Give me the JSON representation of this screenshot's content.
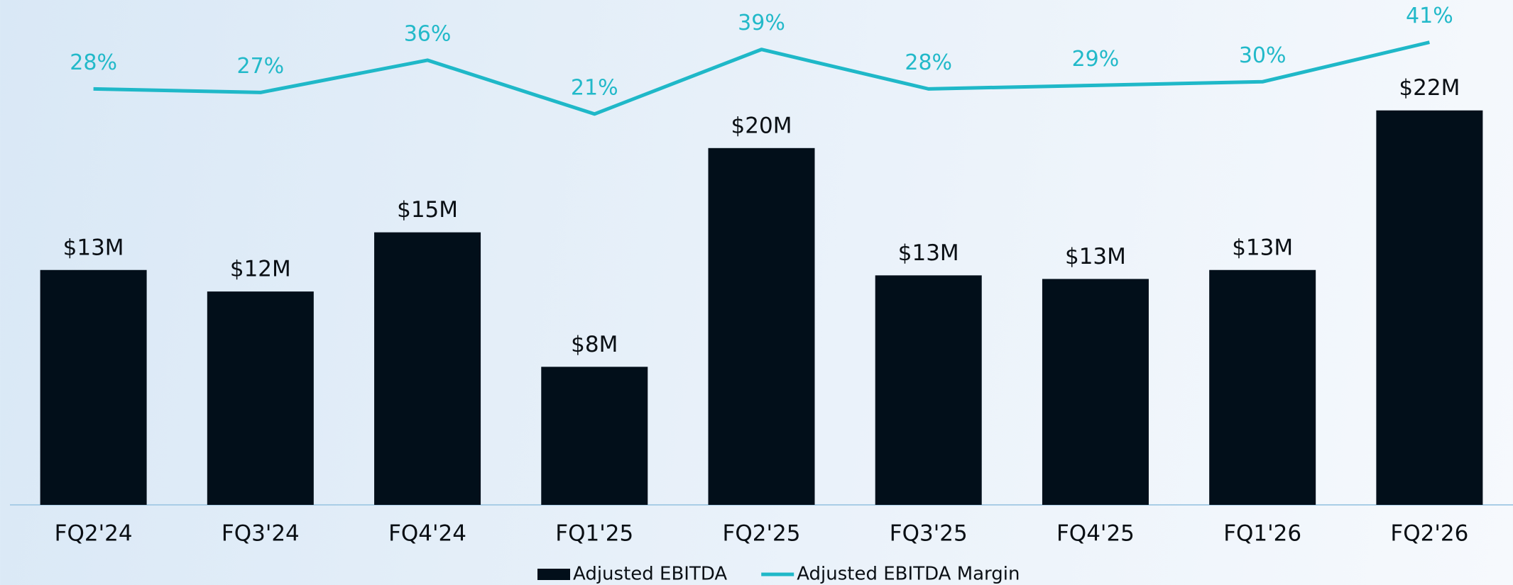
{
  "chart_data": {
    "type": "bar_line",
    "categories": [
      "FQ2'24",
      "FQ3'24",
      "FQ4'24",
      "FQ1'25",
      "FQ2'25",
      "FQ3'25",
      "FQ4'25",
      "FQ1'26",
      "FQ2'26"
    ],
    "series": [
      {
        "name": "Adjusted EBITDA",
        "type": "bar",
        "color": "#020f1a",
        "values": [
          13.1,
          11.9,
          15.2,
          7.7,
          19.9,
          12.8,
          12.6,
          13.1,
          22.0
        ],
        "value_labels": [
          "$13M",
          "$12M",
          "$15M",
          "$8M",
          "$20M",
          "$13M",
          "$13M",
          "$13M",
          "$22M"
        ]
      },
      {
        "name": "Adjusted EBITDA Margin",
        "type": "line",
        "axis": "y2",
        "color": "#1fb8c8",
        "values": [
          28,
          27,
          36,
          21,
          39,
          28,
          29,
          30,
          41
        ],
        "value_labels": [
          "28%",
          "27%",
          "36%",
          "21%",
          "39%",
          "28%",
          "29%",
          "30%",
          "41%"
        ]
      }
    ],
    "ylim": [
      0,
      28
    ],
    "y2lim": [
      -88,
      52
    ],
    "legend": "bottom"
  }
}
